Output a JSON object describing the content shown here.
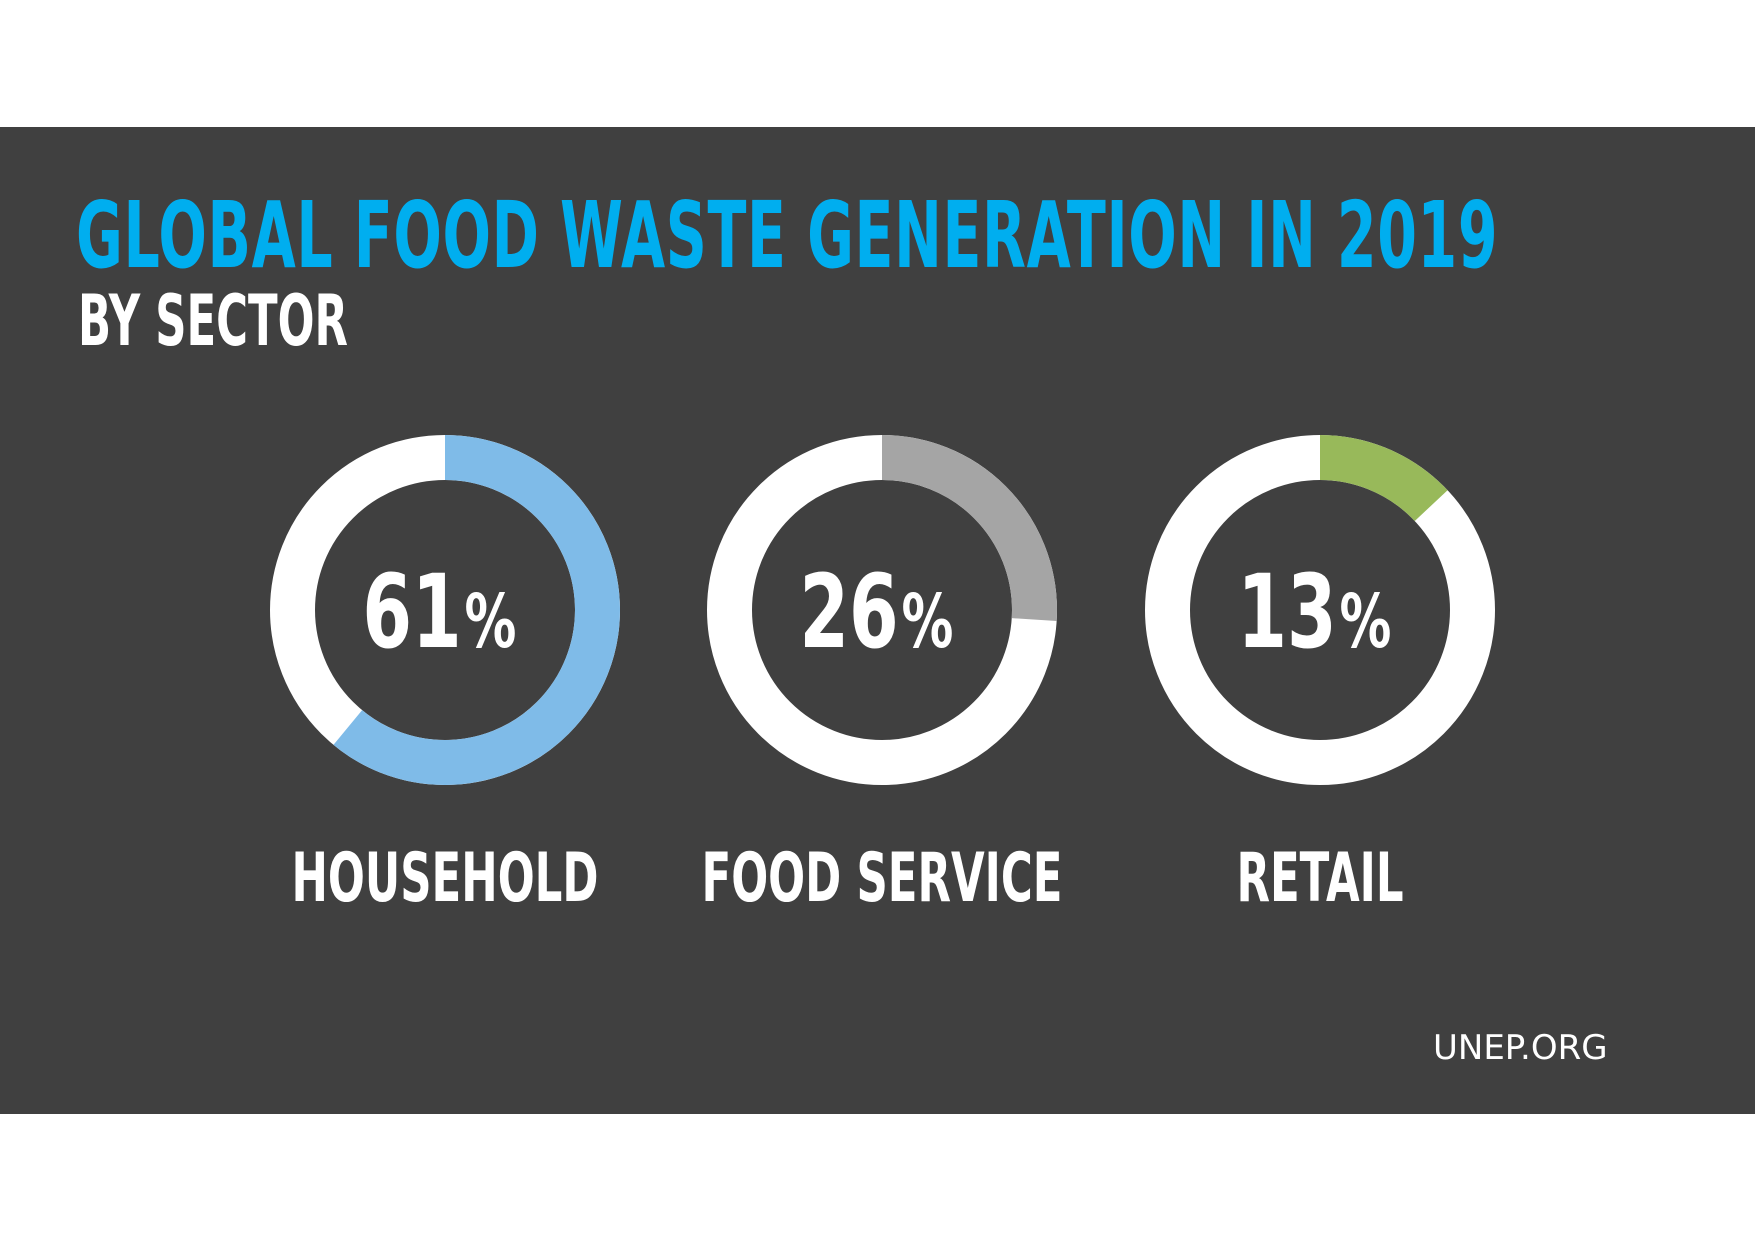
{
  "header": {
    "title": "GLOBAL FOOD WASTE GENERATION IN 2019",
    "subtitle": "BY SECTOR"
  },
  "footer": {
    "source": "UNEP.ORG"
  },
  "colors": {
    "background": "#404040",
    "title": "#00aeef",
    "ring_base": "#ffffff",
    "household": "#7fbbe8",
    "food_service": "#a5a5a5",
    "retail": "#98b95a"
  },
  "chart_data": {
    "type": "pie",
    "title": "GLOBAL FOOD WASTE GENERATION IN 2019",
    "subtitle": "BY SECTOR",
    "unit": "%",
    "categories": [
      "HOUSEHOLD",
      "FOOD SERVICE",
      "RETAIL"
    ],
    "values": [
      61,
      26,
      13
    ],
    "value_labels": [
      "61",
      "26",
      "13"
    ],
    "series_colors": [
      "#7fbbe8",
      "#a5a5a5",
      "#98b95a"
    ]
  }
}
